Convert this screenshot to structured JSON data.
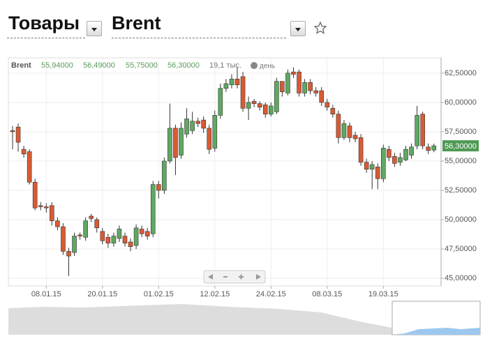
{
  "page": {
    "section": "Товары",
    "instrument": "Brent"
  },
  "chart_data": {
    "type": "candlestick",
    "quote": {
      "symbol": "Brent",
      "open": "55,94000",
      "high": "56,49000",
      "low": "55,75000",
      "close": "56,30000",
      "volume": "19,1 тыс.",
      "period": "день"
    },
    "last_label": "56,30000",
    "categories": [
      null,
      null,
      null,
      null,
      null,
      null,
      "08.01.15",
      null,
      null,
      null,
      null,
      null,
      null,
      null,
      null,
      null,
      "20.01.15",
      null,
      null,
      null,
      null,
      null,
      null,
      null,
      null,
      null,
      "01.02.15",
      null,
      null,
      null,
      null,
      null,
      null,
      null,
      null,
      null,
      "12.02.15",
      null,
      null,
      null,
      null,
      null,
      null,
      null,
      null,
      null,
      "24.02.15",
      null,
      null,
      null,
      null,
      null,
      null,
      null,
      null,
      null,
      "08.03.15",
      null,
      null,
      null,
      null,
      null,
      null,
      null,
      null,
      null,
      "19.03.15",
      null,
      null,
      null,
      null,
      null,
      null,
      null,
      null,
      null
    ],
    "open": [
      57.6,
      57.9,
      56.0,
      55.8,
      53.2,
      51.2,
      51.1,
      51.2,
      49.9,
      49.4,
      47.3,
      47.2,
      48.7,
      48.5,
      50.3,
      50.0,
      49.0,
      48.5,
      48.0,
      48.4,
      48.6,
      48.1,
      47.8,
      49.2,
      49.0,
      48.8,
      53.0,
      52.5,
      55.0,
      57.8,
      55.5,
      57.3,
      57.6,
      58.4,
      58.5,
      57.8,
      56.1,
      58.9,
      61.2,
      61.5,
      62.0,
      62.2,
      59.5,
      60.1,
      59.9,
      59.8,
      59.0,
      59.2,
      61.8,
      60.8,
      62.6,
      62.6,
      60.8,
      61.7,
      61.0,
      61.0,
      60.0,
      59.5,
      59.0,
      57.0,
      58.0,
      57.2,
      57.0,
      54.9,
      54.3,
      54.5,
      53.5,
      56.0,
      55.4,
      54.9,
      55.1,
      55.5,
      56.3,
      59.0,
      56.2,
      55.94
    ],
    "high": [
      58.0,
      58.2,
      56.3,
      56.0,
      53.5,
      51.5,
      51.4,
      51.5,
      50.2,
      49.7,
      47.6,
      48.9,
      48.9,
      50.2,
      50.5,
      50.2,
      49.3,
      48.8,
      48.9,
      49.5,
      48.9,
      48.4,
      49.6,
      49.5,
      49.3,
      53.3,
      53.3,
      55.3,
      59.9,
      58.1,
      58.3,
      59.5,
      59.2,
      58.7,
      58.8,
      58.1,
      59.3,
      61.6,
      62.0,
      62.4,
      63.0,
      62.6,
      60.5,
      60.3,
      60.1,
      60.0,
      60.0,
      62.1,
      61.8,
      62.8,
      63.0,
      62.8,
      62.0,
      62.0,
      61.3,
      61.3,
      60.3,
      59.8,
      59.3,
      58.5,
      58.3,
      57.5,
      57.3,
      55.2,
      55.0,
      54.8,
      56.4,
      56.3,
      55.7,
      55.7,
      56.3,
      56.5,
      59.7,
      59.2,
      56.5,
      56.49
    ],
    "low": [
      56.0,
      55.8,
      55.3,
      53.0,
      50.8,
      50.8,
      50.6,
      49.5,
      49.1,
      47.0,
      45.2,
      46.9,
      48.3,
      48.2,
      49.8,
      48.9,
      47.9,
      47.6,
      47.7,
      48.1,
      47.7,
      47.3,
      47.5,
      48.5,
      48.3,
      48.5,
      51.8,
      52.2,
      54.8,
      53.8,
      55.2,
      57.0,
      57.3,
      57.9,
      57.4,
      55.6,
      55.8,
      58.6,
      60.9,
      61.2,
      61.2,
      59.2,
      58.5,
      59.6,
      59.3,
      58.7,
      58.8,
      59.0,
      60.5,
      60.6,
      62.1,
      60.5,
      60.5,
      60.7,
      60.5,
      59.7,
      59.3,
      58.7,
      56.5,
      56.8,
      56.6,
      56.6,
      54.6,
      54.0,
      52.6,
      52.6,
      53.2,
      55.0,
      54.5,
      54.6,
      55.0,
      55.2,
      56.0,
      56.0,
      55.6,
      55.75
    ],
    "close": [
      57.5,
      56.6,
      55.6,
      53.2,
      51.0,
      51.1,
      51.0,
      49.9,
      49.4,
      47.3,
      46.9,
      48.6,
      48.6,
      49.9,
      50.1,
      49.3,
      48.2,
      48.0,
      48.6,
      49.2,
      48.0,
      47.7,
      49.3,
      48.8,
      48.6,
      53.0,
      52.5,
      55.0,
      57.8,
      55.3,
      57.8,
      58.6,
      58.4,
      58.2,
      57.8,
      56.0,
      58.9,
      61.2,
      61.6,
      62.0,
      61.5,
      59.5,
      60.0,
      59.9,
      59.6,
      59.0,
      59.7,
      61.8,
      60.9,
      62.5,
      62.4,
      60.8,
      61.7,
      61.0,
      60.8,
      60.0,
      59.6,
      59.0,
      57.0,
      58.2,
      57.0,
      56.9,
      54.9,
      54.3,
      54.7,
      53.5,
      56.1,
      55.3,
      54.8,
      55.3,
      56.0,
      56.2,
      58.9,
      56.3,
      55.9,
      56.3
    ],
    "up_color": "#5fa862",
    "down_color": "#d95b33",
    "ylim": [
      44.35,
      63.8
    ],
    "yticks": [
      {
        "value": 45,
        "label": "45,00000"
      },
      {
        "value": 47.5,
        "label": "47,50000"
      },
      {
        "value": 50,
        "label": "50,00000"
      },
      {
        "value": 52.5,
        "label": "52,50000"
      },
      {
        "value": 55,
        "label": "55,00000"
      },
      {
        "value": 57.5,
        "label": "57,50000"
      },
      {
        "value": 60,
        "label": "60,00000"
      },
      {
        "value": 62.5,
        "label": "62,50000"
      }
    ],
    "grid": true
  }
}
